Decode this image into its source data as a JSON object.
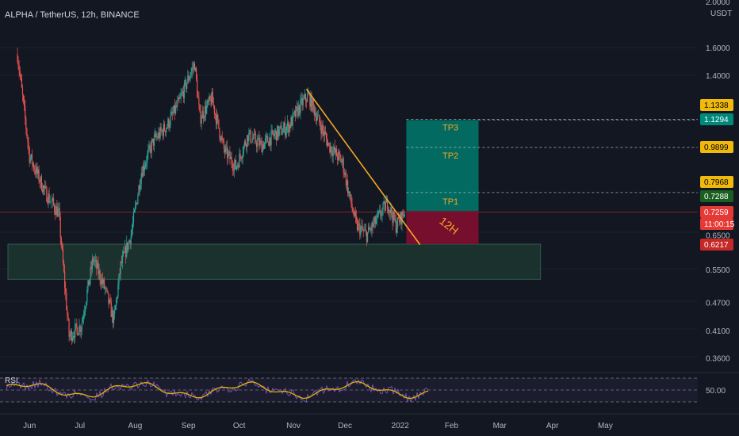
{
  "title": "ALPHA / TetherUS, 12h, BINANCE",
  "colors": {
    "background": "#131722",
    "up": "#26a69a",
    "down": "#ef5350",
    "trendline": "#f5a623",
    "rsi_line": "#e0b400",
    "rsi_volatile": "#7e57c2",
    "tp_label": "#f5a623",
    "target_zone": "#00796b",
    "stop_zone": "#880e2f",
    "support_zone": "#1d3b33"
  },
  "price_axis": {
    "unit": "USDT",
    "top_partial_label": "2.0000",
    "ticks": [
      "1.6000",
      "1.4000",
      "0.6500",
      "0.5500",
      "0.4700",
      "0.4100",
      "0.3600"
    ],
    "badges": [
      {
        "label": "1.1338",
        "bg": "#f0b90b",
        "fg": "#000000"
      },
      {
        "label": "1.1294",
        "bg": "#00897b",
        "fg": "#ffffff"
      },
      {
        "label": "0.9899",
        "bg": "#f0b90b",
        "fg": "#000000"
      },
      {
        "label": "0.7968",
        "bg": "#f0b90b",
        "fg": "#000000"
      },
      {
        "label": "0.7288",
        "bg": "#1b5e20",
        "fg": "#ffffff"
      },
      {
        "label": "0.7259",
        "bg": "#e53935",
        "fg": "#ffffff"
      },
      {
        "label": "11:00:15",
        "bg": "#e53935",
        "fg": "#ffffff"
      },
      {
        "label": "0.6217",
        "bg": "#c62828",
        "fg": "#ffffff"
      }
    ]
  },
  "time_axis": [
    "Jun",
    "Jul",
    "Aug",
    "Sep",
    "Oct",
    "Nov",
    "Dec",
    "2022",
    "Feb",
    "Mar",
    "Apr",
    "May"
  ],
  "annotations": {
    "tp3": "TP3",
    "tp2": "TP2",
    "tp1": "TP1",
    "timeframe": "12H"
  },
  "rsi": {
    "label": "RSI",
    "axis_label": "50.00",
    "levels": [
      70,
      50,
      30
    ]
  },
  "chart_data": {
    "type": "candlestick",
    "title": "ALPHA / TetherUS, 12h, BINANCE",
    "y_scale": "log",
    "ylim": [
      0.34,
      2.0
    ],
    "x_range": [
      "2021-06-01",
      "2022-05-31"
    ],
    "last_price": 0.7259,
    "close_series": [
      {
        "date": "2021-05-25",
        "close": 1.55
      },
      {
        "date": "2021-06-01",
        "close": 0.95
      },
      {
        "date": "2021-06-10",
        "close": 0.8
      },
      {
        "date": "2021-06-18",
        "close": 0.72
      },
      {
        "date": "2021-06-24",
        "close": 0.4
      },
      {
        "date": "2021-07-01",
        "close": 0.42
      },
      {
        "date": "2021-07-08",
        "close": 0.58
      },
      {
        "date": "2021-07-15",
        "close": 0.5
      },
      {
        "date": "2021-07-20",
        "close": 0.43
      },
      {
        "date": "2021-07-24",
        "close": 0.56
      },
      {
        "date": "2021-07-30",
        "close": 0.65
      },
      {
        "date": "2021-08-05",
        "close": 0.88
      },
      {
        "date": "2021-08-12",
        "close": 1.02
      },
      {
        "date": "2021-08-20",
        "close": 1.1
      },
      {
        "date": "2021-08-27",
        "close": 1.23
      },
      {
        "date": "2021-09-02",
        "close": 1.4
      },
      {
        "date": "2021-09-05",
        "close": 1.48
      },
      {
        "date": "2021-09-08",
        "close": 1.14
      },
      {
        "date": "2021-09-15",
        "close": 1.25
      },
      {
        "date": "2021-09-22",
        "close": 0.98
      },
      {
        "date": "2021-09-29",
        "close": 0.9
      },
      {
        "date": "2021-10-06",
        "close": 1.05
      },
      {
        "date": "2021-10-14",
        "close": 1.0
      },
      {
        "date": "2021-10-21",
        "close": 1.05
      },
      {
        "date": "2021-10-30",
        "close": 1.1
      },
      {
        "date": "2021-11-06",
        "close": 1.22
      },
      {
        "date": "2021-11-10",
        "close": 1.27
      },
      {
        "date": "2021-11-15",
        "close": 1.15
      },
      {
        "date": "2021-11-22",
        "close": 1.0
      },
      {
        "date": "2021-11-30",
        "close": 0.92
      },
      {
        "date": "2021-12-04",
        "close": 0.78
      },
      {
        "date": "2021-12-08",
        "close": 0.68
      },
      {
        "date": "2021-12-14",
        "close": 0.65
      },
      {
        "date": "2021-12-20",
        "close": 0.7
      },
      {
        "date": "2021-12-26",
        "close": 0.76
      },
      {
        "date": "2021-12-31",
        "close": 0.68
      },
      {
        "date": "2022-01-05",
        "close": 0.7259
      }
    ],
    "trendline": [
      {
        "date": "2021-11-09",
        "price": 1.31
      },
      {
        "date": "2022-01-14",
        "price": 0.62
      }
    ],
    "long_position": {
      "start_date": "2022-01-06",
      "end_date": "2022-02-17",
      "entry": 0.7288,
      "target": 1.1294,
      "stop": 0.6217
    },
    "take_profits": [
      {
        "name": "TP1",
        "price": 0.7968
      },
      {
        "name": "TP2",
        "price": 0.9899
      },
      {
        "name": "TP3",
        "price": 1.1338
      }
    ],
    "support_zone": {
      "start_date": "2021-05-25",
      "end_date": "2022-03-25",
      "upper": 0.6217,
      "lower": 0.525
    }
  }
}
